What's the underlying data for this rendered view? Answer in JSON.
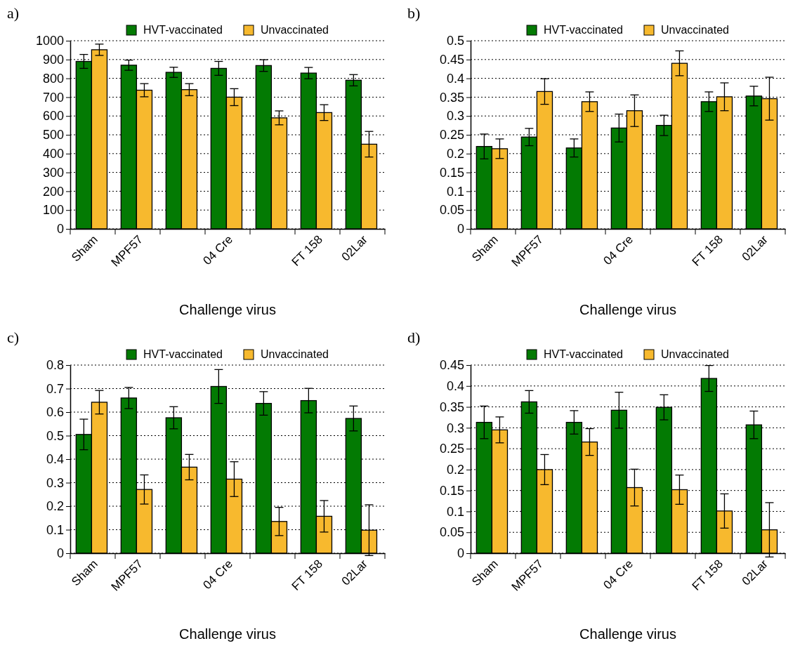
{
  "chart_data": [
    {
      "type": "bar",
      "title": "a)",
      "xlabel": "Challenge virus",
      "categories": [
        "Sham",
        "MPF57",
        null,
        "04 Cre",
        null,
        "FT 158",
        "02Lar"
      ],
      "ylim": [
        0,
        1000
      ],
      "yticks": [
        0,
        100,
        200,
        300,
        400,
        500,
        600,
        700,
        800,
        900,
        1000
      ],
      "grid": "y",
      "legend": "top",
      "series": [
        {
          "name": "HVT-vaccinated",
          "color": "#037a03",
          "values": [
            890,
            870,
            832,
            853,
            868,
            828,
            790
          ],
          "errors": [
            37,
            27,
            27,
            37,
            31,
            30,
            30
          ]
        },
        {
          "name": "Unvaccinated",
          "color": "#f7b92e",
          "values": [
            952,
            737,
            740,
            700,
            590,
            618,
            450
          ],
          "errors": [
            30,
            35,
            32,
            45,
            37,
            42,
            68
          ]
        }
      ]
    },
    {
      "type": "bar",
      "title": "b)",
      "xlabel": "Challenge virus",
      "categories": [
        "Sham",
        "MPF57",
        null,
        "04 Cre",
        null,
        "FT 158",
        "02Lar"
      ],
      "ylim": [
        0,
        0.5
      ],
      "yticks": [
        0,
        0.05,
        0.1,
        0.15,
        0.2,
        0.25,
        0.3,
        0.35,
        0.4,
        0.45,
        0.5
      ],
      "grid": "y",
      "legend": "top",
      "series": [
        {
          "name": "HVT-vaccinated",
          "color": "#037a03",
          "values": [
            0.219,
            0.244,
            0.215,
            0.268,
            0.275,
            0.338,
            0.353
          ],
          "errors": [
            0.033,
            0.023,
            0.024,
            0.037,
            0.027,
            0.026,
            0.026
          ]
        },
        {
          "name": "Unvaccinated",
          "color": "#f7b92e",
          "values": [
            0.213,
            0.365,
            0.338,
            0.314,
            0.44,
            0.351,
            0.346
          ],
          "errors": [
            0.026,
            0.034,
            0.026,
            0.042,
            0.033,
            0.037,
            0.057
          ]
        }
      ]
    },
    {
      "type": "bar",
      "title": "c)",
      "xlabel": "Challenge virus",
      "categories": [
        "Sham",
        "MPF57",
        null,
        "04 Cre",
        null,
        "FT 158",
        "02Lar"
      ],
      "ylim": [
        0,
        0.8
      ],
      "yticks": [
        0,
        0.1,
        0.2,
        0.3,
        0.4,
        0.5,
        0.6,
        0.7,
        0.8
      ],
      "grid": "y",
      "legend": "top",
      "series": [
        {
          "name": "HVT-vaccinated",
          "color": "#037a03",
          "values": [
            0.505,
            0.66,
            0.576,
            0.709,
            0.637,
            0.649,
            0.573
          ],
          "errors": [
            0.065,
            0.045,
            0.047,
            0.072,
            0.05,
            0.052,
            0.053
          ]
        },
        {
          "name": "Unvaccinated",
          "color": "#f7b92e",
          "values": [
            0.642,
            0.271,
            0.366,
            0.315,
            0.135,
            0.157,
            0.098
          ],
          "errors": [
            0.05,
            0.062,
            0.054,
            0.074,
            0.06,
            0.067,
            0.108
          ]
        }
      ]
    },
    {
      "type": "bar",
      "title": "d)",
      "xlabel": "Challenge virus",
      "categories": [
        "Sham",
        "MPF57",
        null,
        "04 Cre",
        null,
        "FT 158",
        "02Lar"
      ],
      "ylim": [
        0,
        0.45
      ],
      "yticks": [
        0,
        0.05,
        0.1,
        0.15,
        0.2,
        0.25,
        0.3,
        0.35,
        0.4,
        0.45
      ],
      "grid": "y",
      "legend": "top",
      "series": [
        {
          "name": "HVT-vaccinated",
          "color": "#037a03",
          "values": [
            0.313,
            0.362,
            0.313,
            0.342,
            0.349,
            0.418,
            0.307
          ],
          "errors": [
            0.039,
            0.027,
            0.028,
            0.043,
            0.03,
            0.031,
            0.033
          ]
        },
        {
          "name": "Unvaccinated",
          "color": "#f7b92e",
          "values": [
            0.295,
            0.2,
            0.266,
            0.157,
            0.152,
            0.101,
            0.056
          ],
          "errors": [
            0.031,
            0.036,
            0.032,
            0.044,
            0.035,
            0.041,
            0.065
          ]
        }
      ]
    }
  ]
}
